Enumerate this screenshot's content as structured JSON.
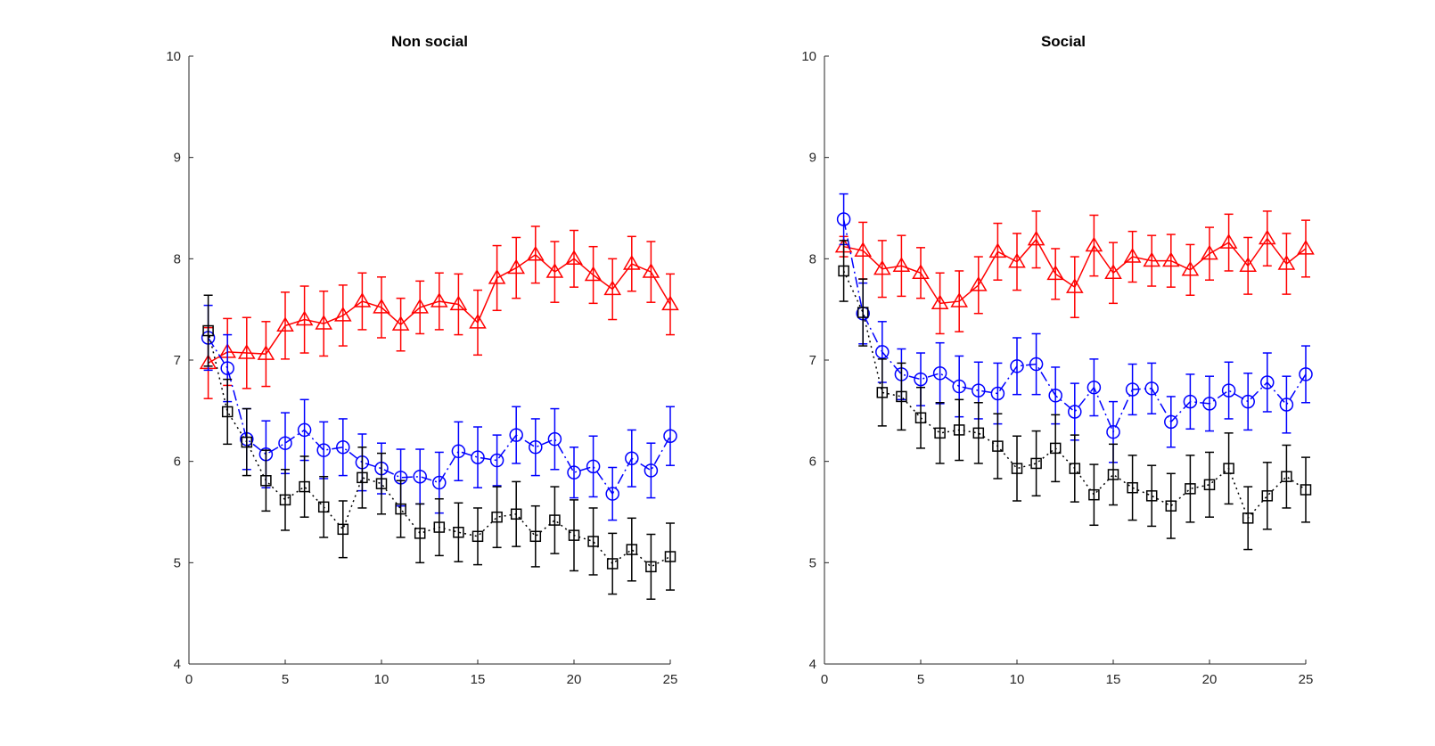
{
  "chart_data": [
    {
      "type": "line",
      "title": "Non social",
      "xlabel": "",
      "ylabel": "",
      "xlim": [
        0,
        25
      ],
      "ylim": [
        4,
        10
      ],
      "xticks": [
        "0",
        "5",
        "10",
        "15",
        "20",
        "25"
      ],
      "yticks": [
        "4",
        "5",
        "6",
        "7",
        "8",
        "9",
        "10"
      ],
      "grid": false,
      "x": [
        1,
        2,
        3,
        4,
        5,
        6,
        7,
        8,
        9,
        10,
        11,
        12,
        13,
        14,
        15,
        16,
        17,
        18,
        19,
        20,
        21,
        22,
        23,
        24,
        25
      ],
      "series": [
        {
          "color": "#ff0000",
          "marker": "triangle",
          "line_style": "solid",
          "values": [
            6.97,
            7.08,
            7.07,
            7.06,
            7.34,
            7.4,
            7.36,
            7.44,
            7.58,
            7.52,
            7.35,
            7.52,
            7.58,
            7.55,
            7.37,
            7.81,
            7.91,
            8.04,
            7.87,
            8.0,
            7.84,
            7.7,
            7.95,
            7.87,
            7.55
          ],
          "error": [
            0.35,
            0.33,
            0.35,
            0.32,
            0.33,
            0.33,
            0.32,
            0.3,
            0.28,
            0.3,
            0.26,
            0.26,
            0.28,
            0.3,
            0.32,
            0.32,
            0.3,
            0.28,
            0.3,
            0.28,
            0.28,
            0.3,
            0.27,
            0.3,
            0.3
          ]
        },
        {
          "color": "#0000ff",
          "marker": "circle",
          "line_style": "dashdot",
          "values": [
            7.22,
            6.92,
            6.22,
            6.07,
            6.18,
            6.31,
            6.11,
            6.14,
            5.99,
            5.93,
            5.84,
            5.85,
            5.79,
            6.1,
            6.04,
            6.01,
            6.26,
            6.14,
            6.22,
            5.89,
            5.95,
            5.68,
            6.03,
            5.91,
            6.25
          ],
          "error": [
            0.32,
            0.33,
            0.3,
            0.33,
            0.3,
            0.3,
            0.28,
            0.28,
            0.28,
            0.25,
            0.28,
            0.27,
            0.3,
            0.29,
            0.3,
            0.25,
            0.28,
            0.28,
            0.3,
            0.25,
            0.3,
            0.26,
            0.28,
            0.27,
            0.29
          ]
        },
        {
          "color": "#000000",
          "marker": "square",
          "line_style": "dotted",
          "values": [
            7.29,
            6.49,
            6.19,
            5.81,
            5.62,
            5.75,
            5.55,
            5.33,
            5.84,
            5.78,
            5.53,
            5.29,
            5.35,
            5.3,
            5.26,
            5.45,
            5.48,
            5.26,
            5.42,
            5.27,
            5.21,
            4.99,
            5.13,
            4.96,
            5.06
          ],
          "error": [
            0.35,
            0.32,
            0.33,
            0.3,
            0.3,
            0.3,
            0.3,
            0.28,
            0.3,
            0.3,
            0.28,
            0.29,
            0.28,
            0.29,
            0.28,
            0.3,
            0.32,
            0.3,
            0.33,
            0.35,
            0.33,
            0.3,
            0.31,
            0.32,
            0.33
          ]
        }
      ]
    },
    {
      "type": "line",
      "title": "Social",
      "xlabel": "",
      "ylabel": "",
      "xlim": [
        0,
        25
      ],
      "ylim": [
        4,
        10
      ],
      "xticks": [
        "0",
        "5",
        "10",
        "15",
        "20",
        "25"
      ],
      "yticks": [
        "4",
        "5",
        "6",
        "7",
        "8",
        "9",
        "10"
      ],
      "grid": false,
      "x": [
        1,
        2,
        3,
        4,
        5,
        6,
        7,
        8,
        9,
        10,
        11,
        12,
        13,
        14,
        15,
        16,
        17,
        18,
        19,
        20,
        21,
        22,
        23,
        24,
        25
      ],
      "series": [
        {
          "color": "#ff0000",
          "marker": "triangle",
          "line_style": "solid",
          "values": [
            8.12,
            8.08,
            7.9,
            7.93,
            7.86,
            7.56,
            7.58,
            7.74,
            8.07,
            7.97,
            8.19,
            7.85,
            7.72,
            8.13,
            7.86,
            8.02,
            7.98,
            7.98,
            7.89,
            8.05,
            8.16,
            7.93,
            8.2,
            7.95,
            8.1
          ],
          "error": [
            0.1,
            0.28,
            0.28,
            0.3,
            0.25,
            0.3,
            0.3,
            0.28,
            0.28,
            0.28,
            0.28,
            0.25,
            0.3,
            0.3,
            0.3,
            0.25,
            0.25,
            0.26,
            0.25,
            0.26,
            0.28,
            0.28,
            0.27,
            0.3,
            0.28
          ]
        },
        {
          "color": "#0000ff",
          "marker": "circle",
          "line_style": "dashdot",
          "values": [
            8.39,
            7.46,
            7.08,
            6.86,
            6.81,
            6.87,
            6.74,
            6.7,
            6.67,
            6.94,
            6.96,
            6.65,
            6.49,
            6.73,
            6.29,
            6.71,
            6.72,
            6.39,
            6.59,
            6.57,
            6.7,
            6.59,
            6.78,
            6.56,
            6.86
          ],
          "error": [
            0.25,
            0.3,
            0.3,
            0.25,
            0.26,
            0.3,
            0.3,
            0.28,
            0.3,
            0.28,
            0.3,
            0.28,
            0.28,
            0.28,
            0.3,
            0.25,
            0.25,
            0.25,
            0.27,
            0.27,
            0.28,
            0.28,
            0.29,
            0.28,
            0.28
          ]
        },
        {
          "color": "#000000",
          "marker": "square",
          "line_style": "dotted",
          "values": [
            7.88,
            7.47,
            6.68,
            6.64,
            6.43,
            6.28,
            6.31,
            6.28,
            6.15,
            5.93,
            5.98,
            6.13,
            5.93,
            5.67,
            5.87,
            5.74,
            5.66,
            5.56,
            5.73,
            5.77,
            5.93,
            5.44,
            5.66,
            5.85,
            5.72
          ],
          "error": [
            0.3,
            0.33,
            0.33,
            0.33,
            0.3,
            0.3,
            0.3,
            0.3,
            0.32,
            0.32,
            0.32,
            0.33,
            0.33,
            0.3,
            0.3,
            0.32,
            0.3,
            0.32,
            0.33,
            0.32,
            0.35,
            0.31,
            0.33,
            0.31,
            0.32
          ]
        }
      ]
    }
  ]
}
